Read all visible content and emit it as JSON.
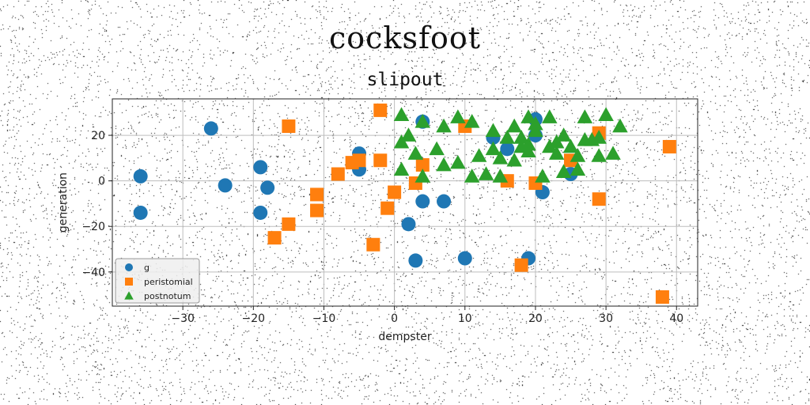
{
  "suptitle": "cocksfoot",
  "chart_data": {
    "type": "scatter",
    "title": "slipout",
    "xlabel": "dempster",
    "ylabel": "generation",
    "xlim": [
      -40,
      43
    ],
    "ylim": [
      -55,
      36
    ],
    "xticks": [
      -30,
      -20,
      -10,
      0,
      10,
      20,
      30,
      40
    ],
    "yticks": [
      -40,
      -20,
      0,
      20
    ],
    "xtick_labels": [
      "−30",
      "−20",
      "−10",
      "0",
      "10",
      "20",
      "30",
      "40"
    ],
    "ytick_labels": [
      "−40",
      "−20",
      "0",
      "20"
    ],
    "grid": true,
    "legend_position": "lower-left",
    "series": [
      {
        "name": "g",
        "marker": "circle",
        "color": "#1f77b4",
        "points": [
          [
            -36,
            2
          ],
          [
            -36,
            -14
          ],
          [
            -26,
            23
          ],
          [
            -24,
            -2
          ],
          [
            -19,
            6
          ],
          [
            -18,
            -3
          ],
          [
            -19,
            -14
          ],
          [
            -5,
            12
          ],
          [
            -5,
            5
          ],
          [
            2,
            -19
          ],
          [
            3,
            -35
          ],
          [
            4,
            26
          ],
          [
            4,
            -9
          ],
          [
            7,
            -9
          ],
          [
            10,
            -34
          ],
          [
            14,
            19
          ],
          [
            16,
            14
          ],
          [
            19,
            -34
          ],
          [
            20,
            20
          ],
          [
            20,
            27
          ],
          [
            21,
            -5
          ],
          [
            25,
            3
          ]
        ]
      },
      {
        "name": "peristomial",
        "marker": "square",
        "color": "#ff7f0e",
        "points": [
          [
            -15,
            24
          ],
          [
            -17,
            -25
          ],
          [
            -15,
            -19
          ],
          [
            -11,
            -6
          ],
          [
            -11,
            -13
          ],
          [
            -8,
            3
          ],
          [
            -6,
            8
          ],
          [
            -5,
            9
          ],
          [
            -2,
            31
          ],
          [
            -2,
            9
          ],
          [
            -1,
            -12
          ],
          [
            -3,
            -28
          ],
          [
            0,
            -5
          ],
          [
            3,
            -1
          ],
          [
            4,
            7
          ],
          [
            10,
            24
          ],
          [
            16,
            0
          ],
          [
            18,
            -37
          ],
          [
            20,
            -1
          ],
          [
            25,
            9
          ],
          [
            29,
            -8
          ],
          [
            29,
            21
          ],
          [
            38,
            -51
          ],
          [
            39,
            15
          ]
        ]
      },
      {
        "name": "postnotum",
        "marker": "triangle",
        "color": "#2ca02c",
        "points": [
          [
            1,
            29
          ],
          [
            1,
            17
          ],
          [
            2,
            20
          ],
          [
            1,
            5
          ],
          [
            3,
            12
          ],
          [
            4,
            2
          ],
          [
            4,
            26
          ],
          [
            6,
            14
          ],
          [
            7,
            24
          ],
          [
            7,
            7
          ],
          [
            9,
            8
          ],
          [
            9,
            28
          ],
          [
            11,
            26
          ],
          [
            11,
            2
          ],
          [
            12,
            11
          ],
          [
            14,
            22
          ],
          [
            14,
            14
          ],
          [
            15,
            10
          ],
          [
            15,
            2
          ],
          [
            16,
            19
          ],
          [
            17,
            9
          ],
          [
            17,
            24
          ],
          [
            18,
            19
          ],
          [
            18,
            15
          ],
          [
            19,
            13
          ],
          [
            19,
            28
          ],
          [
            20,
            25
          ],
          [
            20,
            22
          ],
          [
            21,
            2
          ],
          [
            22,
            15
          ],
          [
            22,
            28
          ],
          [
            23,
            12
          ],
          [
            23,
            17
          ],
          [
            24,
            20
          ],
          [
            24,
            4
          ],
          [
            25,
            15
          ],
          [
            26,
            5
          ],
          [
            27,
            18
          ],
          [
            27,
            28
          ],
          [
            28,
            18
          ],
          [
            29,
            19
          ],
          [
            29,
            11
          ],
          [
            30,
            29
          ],
          [
            31,
            12
          ],
          [
            32,
            24
          ],
          [
            19,
            16
          ],
          [
            26,
            11
          ],
          [
            13,
            3
          ]
        ]
      }
    ]
  }
}
